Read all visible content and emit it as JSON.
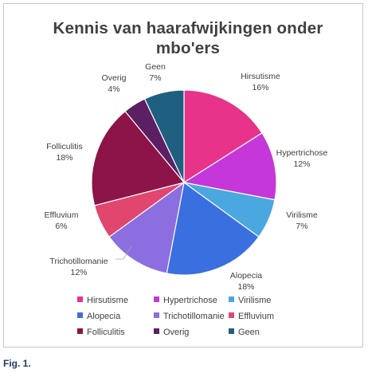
{
  "chart_data": {
    "type": "pie",
    "title": "Kennis van haarafwijkingen onder\nmbo'ers",
    "slices": [
      {
        "label": "Hirsutisme",
        "value": 16,
        "value_label": "16%",
        "color": "#e8338a"
      },
      {
        "label": "Hypertrichose",
        "value": 12,
        "value_label": "12%",
        "color": "#c537d8"
      },
      {
        "label": "Virilisme",
        "value": 7,
        "value_label": "7%",
        "color": "#4aa7e0"
      },
      {
        "label": "Alopecia",
        "value": 18,
        "value_label": "18%",
        "color": "#3a6fe0"
      },
      {
        "label": "Trichotillomanie",
        "value": 12,
        "value_label": "12%",
        "color": "#8c6ee0"
      },
      {
        "label": "Effluvium",
        "value": 6,
        "value_label": "6%",
        "color": "#e0466e"
      },
      {
        "label": "Folliculitis",
        "value": 18,
        "value_label": "18%",
        "color": "#8c1448"
      },
      {
        "label": "Overig",
        "value": 4,
        "value_label": "4%",
        "color": "#5c1f63"
      },
      {
        "label": "Geen",
        "value": 7,
        "value_label": "7%",
        "color": "#1f5f80"
      }
    ],
    "start_angle_deg": 0,
    "direction": "clockwise",
    "legend_placement": "bottom"
  },
  "caption": "Fig. 1."
}
